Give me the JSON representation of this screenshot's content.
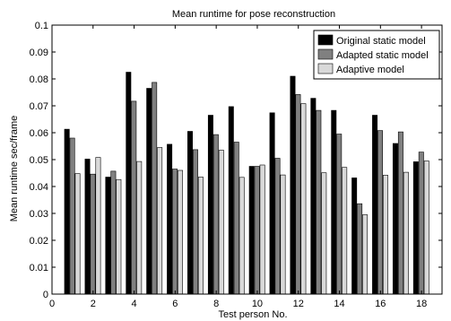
{
  "chart_data": {
    "type": "bar",
    "title": "Mean runtime for pose reconstruction",
    "xlabel": "Test person No.",
    "ylabel": "Mean runtime sec/frame",
    "x": [
      1,
      2,
      3,
      4,
      5,
      6,
      7,
      8,
      9,
      10,
      11,
      12,
      13,
      14,
      15,
      16,
      17,
      18
    ],
    "xlim": [
      0,
      19
    ],
    "xticks": [
      0,
      2,
      4,
      6,
      8,
      10,
      12,
      14,
      16,
      18
    ],
    "ylim": [
      0,
      0.1
    ],
    "yticks": [
      0,
      0.01,
      0.02,
      0.03,
      0.04,
      0.05,
      0.06,
      0.07,
      0.08,
      0.09,
      0.1
    ],
    "xtick_labels": [
      "0",
      "2",
      "4",
      "6",
      "8",
      "10",
      "12",
      "14",
      "16",
      "18"
    ],
    "ytick_labels": [
      "0",
      "0.01",
      "0.02",
      "0.03",
      "0.04",
      "0.05",
      "0.06",
      "0.07",
      "0.08",
      "0.09",
      "0.1"
    ],
    "grid": false,
    "legend_position": "top-right",
    "series": [
      {
        "name": "Original static model",
        "color": "#000000",
        "values": [
          0.0613,
          0.0502,
          0.0435,
          0.0825,
          0.0765,
          0.0557,
          0.0605,
          0.0665,
          0.0697,
          0.0475,
          0.0674,
          0.081,
          0.0728,
          0.0683,
          0.0432,
          0.0665,
          0.056,
          0.0492
        ]
      },
      {
        "name": "Adapted static model",
        "color": "#808080",
        "values": [
          0.058,
          0.0446,
          0.0457,
          0.0717,
          0.0787,
          0.0465,
          0.0537,
          0.0593,
          0.0565,
          0.0475,
          0.0505,
          0.0742,
          0.0683,
          0.0595,
          0.0336,
          0.0608,
          0.0603,
          0.0528
        ]
      },
      {
        "name": "Adaptive model",
        "color": "#d9d9d9",
        "values": [
          0.0448,
          0.0508,
          0.0426,
          0.0493,
          0.0545,
          0.046,
          0.0435,
          0.0535,
          0.0434,
          0.048,
          0.0443,
          0.0708,
          0.0451,
          0.0471,
          0.0295,
          0.0442,
          0.0453,
          0.0495
        ]
      }
    ]
  }
}
